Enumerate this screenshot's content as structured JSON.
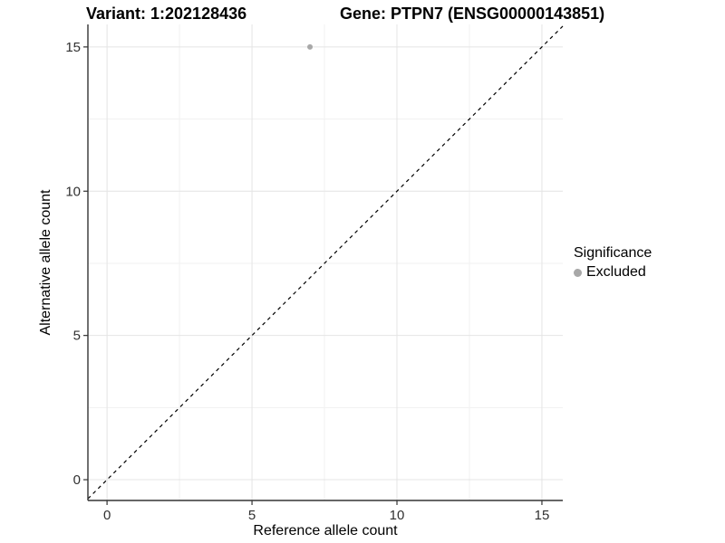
{
  "chart_data": {
    "type": "scatter",
    "titles": {
      "left": "Variant: 1:202128436",
      "right": "Gene: PTPN7 (ENSG00000143851)"
    },
    "xlabel": "Reference allele count",
    "ylabel": "Alternative allele count",
    "xlim": [
      -0.66,
      15.72
    ],
    "ylim": [
      -0.72,
      15.78
    ],
    "x_ticks": [
      0,
      5,
      10,
      15
    ],
    "y_ticks": [
      0,
      5,
      10,
      15
    ],
    "x_minor_ticks": [
      2.5,
      7.5,
      12.5
    ],
    "y_minor_ticks": [
      2.5,
      7.5,
      12.5
    ],
    "grid": "on",
    "series": [
      {
        "name": "Excluded",
        "color": "#a8a8a8",
        "points": [
          {
            "x": 7,
            "y": 15
          }
        ]
      }
    ],
    "identity_line": {
      "equation": "y = x",
      "style": "dashed",
      "color": "#000000"
    },
    "legend": {
      "position": "right",
      "title": "Significance",
      "entries": [
        {
          "label": "Excluded",
          "color": "#a8a8a8"
        }
      ]
    }
  },
  "colors": {
    "background": "#ffffff",
    "grid_major": "#e4e4e4",
    "grid_minor": "#f1f1f1",
    "axis_line": "#333333",
    "tick_mark": "#333333",
    "tick_text": "#303030",
    "title_text": "#000000",
    "point": "#a8a8a8"
  }
}
